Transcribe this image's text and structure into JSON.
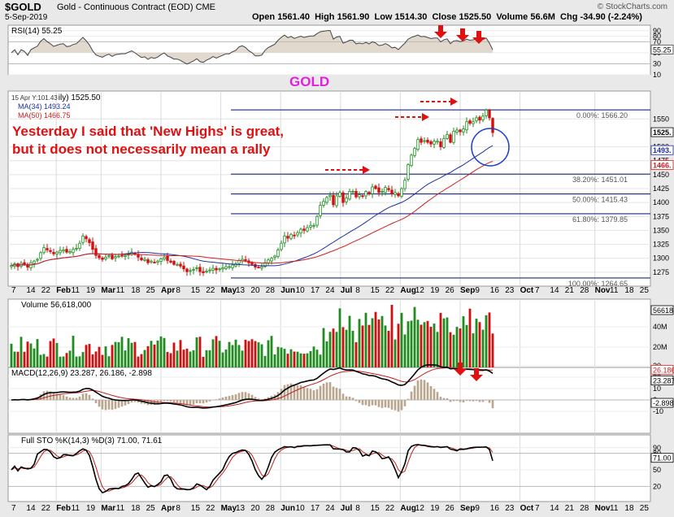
{
  "header": {
    "symbol": "$GOLD",
    "description": "Gold - Continuous Contract (EOD)",
    "exchange": "CME",
    "date": "5-Sep-2019",
    "brand": "© StockCharts.com",
    "open_label": "Open",
    "open": "1561.40",
    "high_label": "High",
    "high": "1561.90",
    "low_label": "Low",
    "low": "1514.30",
    "close_label": "Close",
    "close": "1525.50",
    "volume_label": "Volume",
    "volume": "56.6M",
    "chg_label": "Chg",
    "chg": "-34.90 (-2.24%)"
  },
  "annotations": {
    "gold_label": "GOLD",
    "comment_line1": "Yesterday I said that 'New Highs' is great,",
    "comment_line2": "but it does not necessarily mean a rally"
  },
  "colors": {
    "up": "#1e8c1e",
    "down": "#d01010",
    "ma34": "#1f2fa0",
    "ma50": "#cc2020",
    "annotation": "#e01010",
    "gold_label": "#e020e0",
    "circle": "#2040d0",
    "panel_bg": "#ffffff",
    "frame": "#e9e9e9"
  },
  "chart_data": [
    {
      "type": "candlestick",
      "panel": "price",
      "legend": [
        {
          "label": "15 Apr Y:101.43",
          "suffix": "ily) 1525.50"
        },
        {
          "label": "MA(34) 1493.24",
          "color": "#1f2fa0"
        },
        {
          "label": "MA(50) 1466.75",
          "color": "#cc2020"
        }
      ],
      "ylim": [
        1250,
        1600
      ],
      "y_ticks": [
        1275,
        1300,
        1325,
        1350,
        1375,
        1400,
        1425,
        1450,
        1475,
        1500,
        1550
      ],
      "last_price_label": "1525.",
      "ma_value_labels": [
        "1493.",
        "1466."
      ],
      "fib_levels": [
        {
          "label": "0.00%: 1566.20",
          "value": 1566.2
        },
        {
          "label": "38.20%: 1451.01",
          "value": 1451.01
        },
        {
          "label": "50.00%: 1415.43",
          "value": 1415.43
        },
        {
          "label": "61.80%: 1379.85",
          "value": 1379.85
        },
        {
          "label": "100.00%: 1264.65",
          "value": 1264.65
        }
      ],
      "x_labels": [
        "7",
        "14",
        "22",
        "Feb",
        "11",
        "19",
        "Mar",
        "11",
        "18",
        "25",
        "Apr",
        "8",
        "15",
        "22",
        "May",
        "13",
        "20",
        "28",
        "Jun",
        "10",
        "17",
        "24",
        "Jul",
        "8",
        "15",
        "22",
        "Aug",
        "12",
        "19",
        "26",
        "Sep",
        "9",
        "16",
        "23",
        "Oct",
        "7",
        "14",
        "21",
        "28",
        "Nov",
        "11",
        "18",
        "25"
      ],
      "closes": [
        1287,
        1290,
        1285,
        1291,
        1289,
        1284,
        1292,
        1295,
        1298,
        1310,
        1319,
        1315,
        1312,
        1308,
        1311,
        1314,
        1315,
        1311,
        1312,
        1316,
        1318,
        1327,
        1340,
        1335,
        1328,
        1316,
        1305,
        1301,
        1298,
        1302,
        1305,
        1299,
        1303,
        1304,
        1305,
        1305,
        1308,
        1311,
        1307,
        1302,
        1297,
        1298,
        1292,
        1295,
        1293,
        1295,
        1299,
        1302,
        1296,
        1293,
        1289,
        1289,
        1286,
        1281,
        1276,
        1278,
        1280,
        1283,
        1276,
        1274,
        1277,
        1279,
        1282,
        1279,
        1281,
        1283,
        1285,
        1285,
        1288,
        1290,
        1296,
        1298,
        1296,
        1292,
        1289,
        1284,
        1284,
        1285,
        1292,
        1297,
        1300,
        1304,
        1315,
        1327,
        1340,
        1336,
        1343,
        1340,
        1346,
        1352,
        1350,
        1355,
        1359,
        1359,
        1375,
        1395,
        1402,
        1409,
        1413,
        1396,
        1412,
        1418,
        1400,
        1408,
        1420,
        1420,
        1410,
        1414,
        1412,
        1420,
        1416,
        1428,
        1425,
        1418,
        1420,
        1427,
        1423,
        1416,
        1418,
        1412,
        1425,
        1440,
        1468,
        1485,
        1497,
        1513,
        1508,
        1511,
        1508,
        1505,
        1510,
        1510,
        1500,
        1515,
        1522,
        1508,
        1528,
        1530,
        1527,
        1532,
        1545,
        1542,
        1545,
        1552,
        1548,
        1555,
        1566,
        1552,
        1525.5
      ],
      "ma34_end": 1493.24,
      "ma50_end": 1466.75
    },
    {
      "type": "line",
      "panel": "rsi",
      "legend": "RSI(14) 55.25",
      "ylim": [
        10,
        100
      ],
      "y_ticks": [
        90,
        80,
        70,
        50,
        30,
        10
      ],
      "last_value": 55.25
    },
    {
      "type": "bar",
      "panel": "volume",
      "legend": "Volume 56,618,000",
      "y_ticks": [
        "40M",
        "20M"
      ],
      "last_value_label": "56618"
    },
    {
      "type": "line",
      "panel": "macd",
      "legend": "MACD(12,26,9) 23.287, 26.186, -2.898",
      "y_ticks": [
        30,
        20,
        10,
        0,
        -10
      ],
      "value_labels": [
        "26.186",
        "23.287",
        "-2.898"
      ],
      "macd_last": 23.287,
      "signal_last": 26.186,
      "hist_last": -2.898
    },
    {
      "type": "line",
      "panel": "stochastics",
      "legend": "Full STO %K(14,3) %D(3) 71.00, 71.61",
      "y_ticks": [
        90,
        80,
        50,
        20
      ],
      "last_value_label": "71.00"
    }
  ]
}
